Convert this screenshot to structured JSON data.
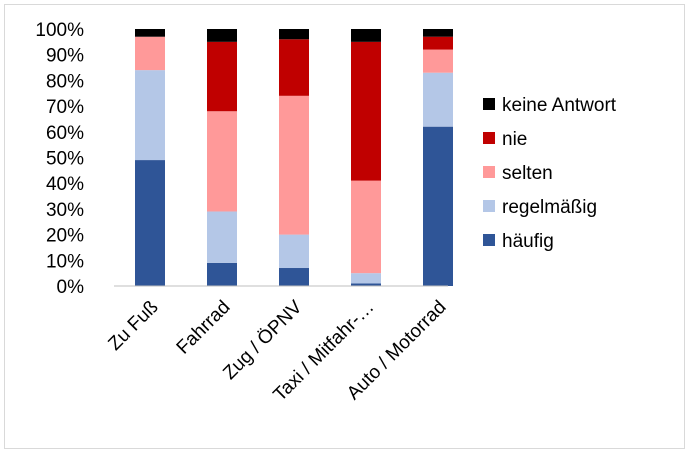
{
  "chart_data": {
    "type": "bar",
    "stacked": true,
    "percent": true,
    "categories": [
      "Zu Fuß",
      "Fahrrad",
      "Zug / ÖPNV",
      "Taxi / Mitfahr-…",
      "Auto / Motorrad"
    ],
    "series": [
      {
        "name": "häufig",
        "color": "#2f5597",
        "values": [
          49,
          9,
          7,
          1,
          62
        ]
      },
      {
        "name": "regelmäßig",
        "color": "#b4c7e7",
        "values": [
          35,
          20,
          13,
          4,
          21
        ]
      },
      {
        "name": "selten",
        "color": "#ff9999",
        "values": [
          13,
          39,
          54,
          36,
          9
        ]
      },
      {
        "name": "nie",
        "color": "#c00000",
        "values": [
          0,
          27,
          22,
          54,
          5
        ]
      },
      {
        "name": "keine Antwort",
        "color": "#000000",
        "values": [
          3,
          5,
          4,
          5,
          3
        ]
      }
    ],
    "y_ticks": [
      "0%",
      "10%",
      "20%",
      "30%",
      "40%",
      "50%",
      "60%",
      "70%",
      "80%",
      "90%",
      "100%"
    ],
    "ylim": [
      0,
      100
    ],
    "title": "",
    "xlabel": "",
    "ylabel": "",
    "grid": false,
    "legend_position": "right",
    "legend_order": [
      "keine Antwort",
      "nie",
      "selten",
      "regelmäßig",
      "häufig"
    ]
  }
}
